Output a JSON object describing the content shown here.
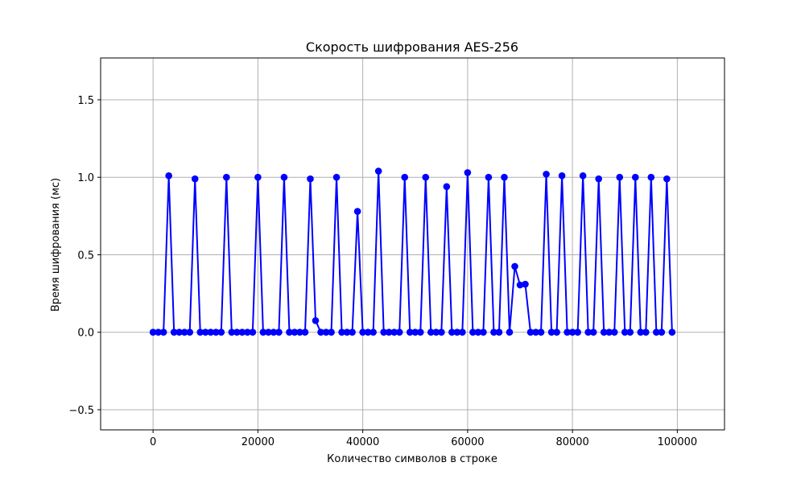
{
  "chart_data": {
    "type": "line",
    "title": "Скорость шифрования AES-256",
    "xlabel": "Количество символов в строке",
    "ylabel": "Время шифрования (мс)",
    "xlim": [
      -10000,
      109000
    ],
    "ylim": [
      -0.63,
      1.77
    ],
    "xticks": [
      0,
      20000,
      40000,
      60000,
      80000,
      100000
    ],
    "xtick_labels": [
      "0",
      "20000",
      "40000",
      "60000",
      "80000",
      "100000"
    ],
    "yticks": [
      -0.5,
      0.0,
      0.5,
      1.0,
      1.5
    ],
    "ytick_labels": [
      "−0.5",
      "0.0",
      "0.5",
      "1.0",
      "1.5"
    ],
    "grid": true,
    "colors": {
      "line": "#0000ff",
      "marker": "#0000ff",
      "grid": "#b0b0b0",
      "axes": "#000000"
    },
    "series": [
      {
        "marker": "circle",
        "x": [
          0,
          1000,
          2000,
          3000,
          4000,
          5000,
          6000,
          7000,
          8000,
          9000,
          10000,
          11000,
          12000,
          13000,
          14000,
          15000,
          16000,
          17000,
          18000,
          19000,
          20000,
          21000,
          22000,
          23000,
          24000,
          25000,
          26000,
          27000,
          28000,
          29000,
          30000,
          31000,
          32000,
          33000,
          34000,
          35000,
          36000,
          37000,
          38000,
          39000,
          40000,
          41000,
          42000,
          43000,
          44000,
          45000,
          46000,
          47000,
          48000,
          49000,
          50000,
          51000,
          52000,
          53000,
          54000,
          55000,
          56000,
          57000,
          58000,
          59000,
          60000,
          61000,
          62000,
          63000,
          64000,
          65000,
          66000,
          67000,
          68000,
          69000,
          70000,
          71000,
          72000,
          73000,
          74000,
          75000,
          76000,
          77000,
          78000,
          79000,
          80000,
          81000,
          82000,
          83000,
          84000,
          85000,
          86000,
          87000,
          88000,
          89000,
          90000,
          91000,
          92000,
          93000,
          94000,
          95000,
          96000,
          97000,
          98000,
          99000
        ],
        "y": [
          0,
          0,
          0,
          1.01,
          0,
          0,
          0,
          0,
          0.99,
          0,
          0,
          0,
          0,
          0,
          1.0,
          0,
          0,
          0,
          0,
          0,
          1.0,
          0,
          0,
          0,
          0,
          1.0,
          0,
          0,
          0,
          0,
          0.99,
          0.075,
          0,
          0,
          0,
          1.0,
          0,
          0,
          0,
          0.78,
          0,
          0,
          0,
          1.04,
          0,
          0,
          0,
          0,
          1.0,
          0,
          0,
          0,
          1.0,
          0,
          0,
          0,
          0.94,
          0,
          0,
          0,
          1.03,
          0,
          0,
          0,
          1.0,
          0,
          0,
          1.0,
          0,
          0.425,
          0.305,
          0.31,
          0,
          0,
          0,
          1.02,
          0,
          0,
          1.01,
          0,
          0,
          0,
          1.01,
          0,
          0,
          0.99,
          0,
          0,
          0,
          1.0,
          0,
          0,
          1.0,
          0,
          0,
          1.0,
          0,
          0,
          0.99,
          0
        ]
      }
    ]
  }
}
